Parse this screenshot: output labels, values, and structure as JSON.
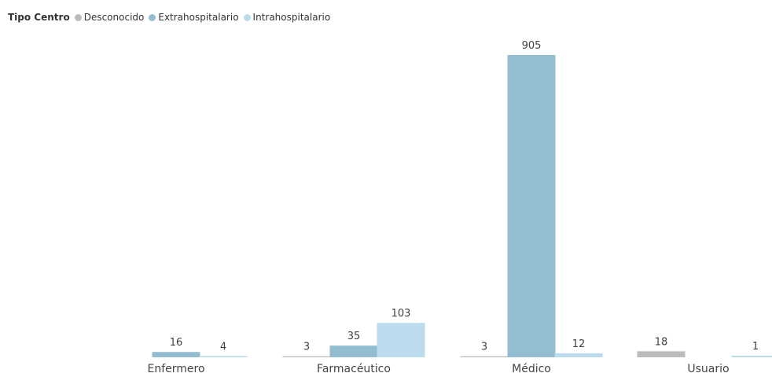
{
  "chart_data": {
    "type": "bar",
    "legend_title": "Tipo Centro",
    "legend_position": "top-left",
    "categories": [
      "Enfermero",
      "Farmacéutico",
      "Médico",
      "Usuario"
    ],
    "series": [
      {
        "name": "Desconocido",
        "color": "#bcbcbc",
        "values": [
          null,
          3,
          3,
          18
        ]
      },
      {
        "name": "Extrahospitalario",
        "color": "#93bdd0",
        "values": [
          16,
          35,
          905,
          null
        ]
      },
      {
        "name": "Intrahospitalario",
        "color": "#bcdcee",
        "values": [
          4,
          103,
          12,
          1
        ]
      }
    ],
    "ylim": [
      0,
      905
    ],
    "grid": false
  }
}
